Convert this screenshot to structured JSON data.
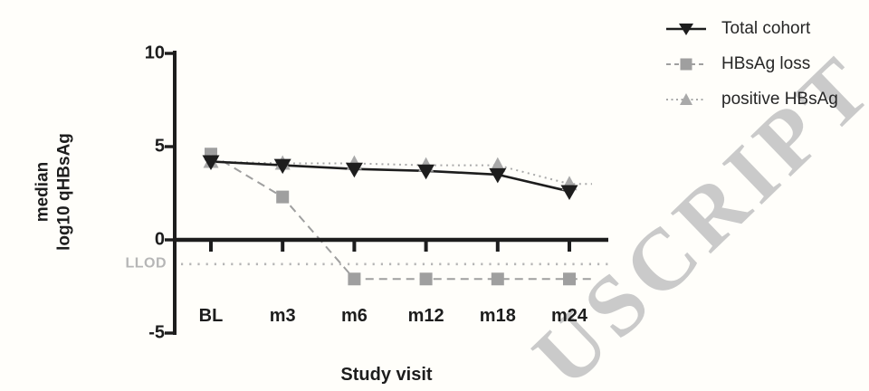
{
  "figure": {
    "background": "#fffefa",
    "watermark": {
      "text": "USCRIPT",
      "color": "#c8c8c8"
    },
    "llod": {
      "label": "LLOD",
      "value": -1.3,
      "color": "#b6b6b6"
    }
  },
  "chart_data": {
    "type": "line",
    "title": "",
    "xlabel": "Study visit",
    "ylabel": "median\nlog10 qHBsAg",
    "categories": [
      "BL",
      "m3",
      "m6",
      "m12",
      "m18",
      "m24"
    ],
    "series": [
      {
        "name": "Total cohort",
        "marker": "triangle-down",
        "line_style": "solid",
        "color": "#1d1d1d",
        "values": [
          4.2,
          4.0,
          3.8,
          3.7,
          3.5,
          2.6
        ]
      },
      {
        "name": "HBsAg loss",
        "marker": "square",
        "line_style": "dashed",
        "color": "#9f9f9f",
        "values": [
          4.6,
          2.3,
          -2.1,
          -2.1,
          -2.1,
          -2.1
        ]
      },
      {
        "name": "positive HBsAg",
        "marker": "triangle-up",
        "line_style": "dotted",
        "color": "#a9a9a9",
        "values": [
          4.2,
          4.1,
          4.1,
          4.0,
          4.0,
          3.0
        ]
      }
    ],
    "yticks": [
      10,
      5,
      0,
      -5
    ],
    "ylim": [
      -5,
      10
    ],
    "grid": false,
    "legend_position": "top-right",
    "annotations": [
      {
        "label": "LLOD",
        "value": -1.3,
        "style": "dotted-gray-line"
      }
    ]
  }
}
